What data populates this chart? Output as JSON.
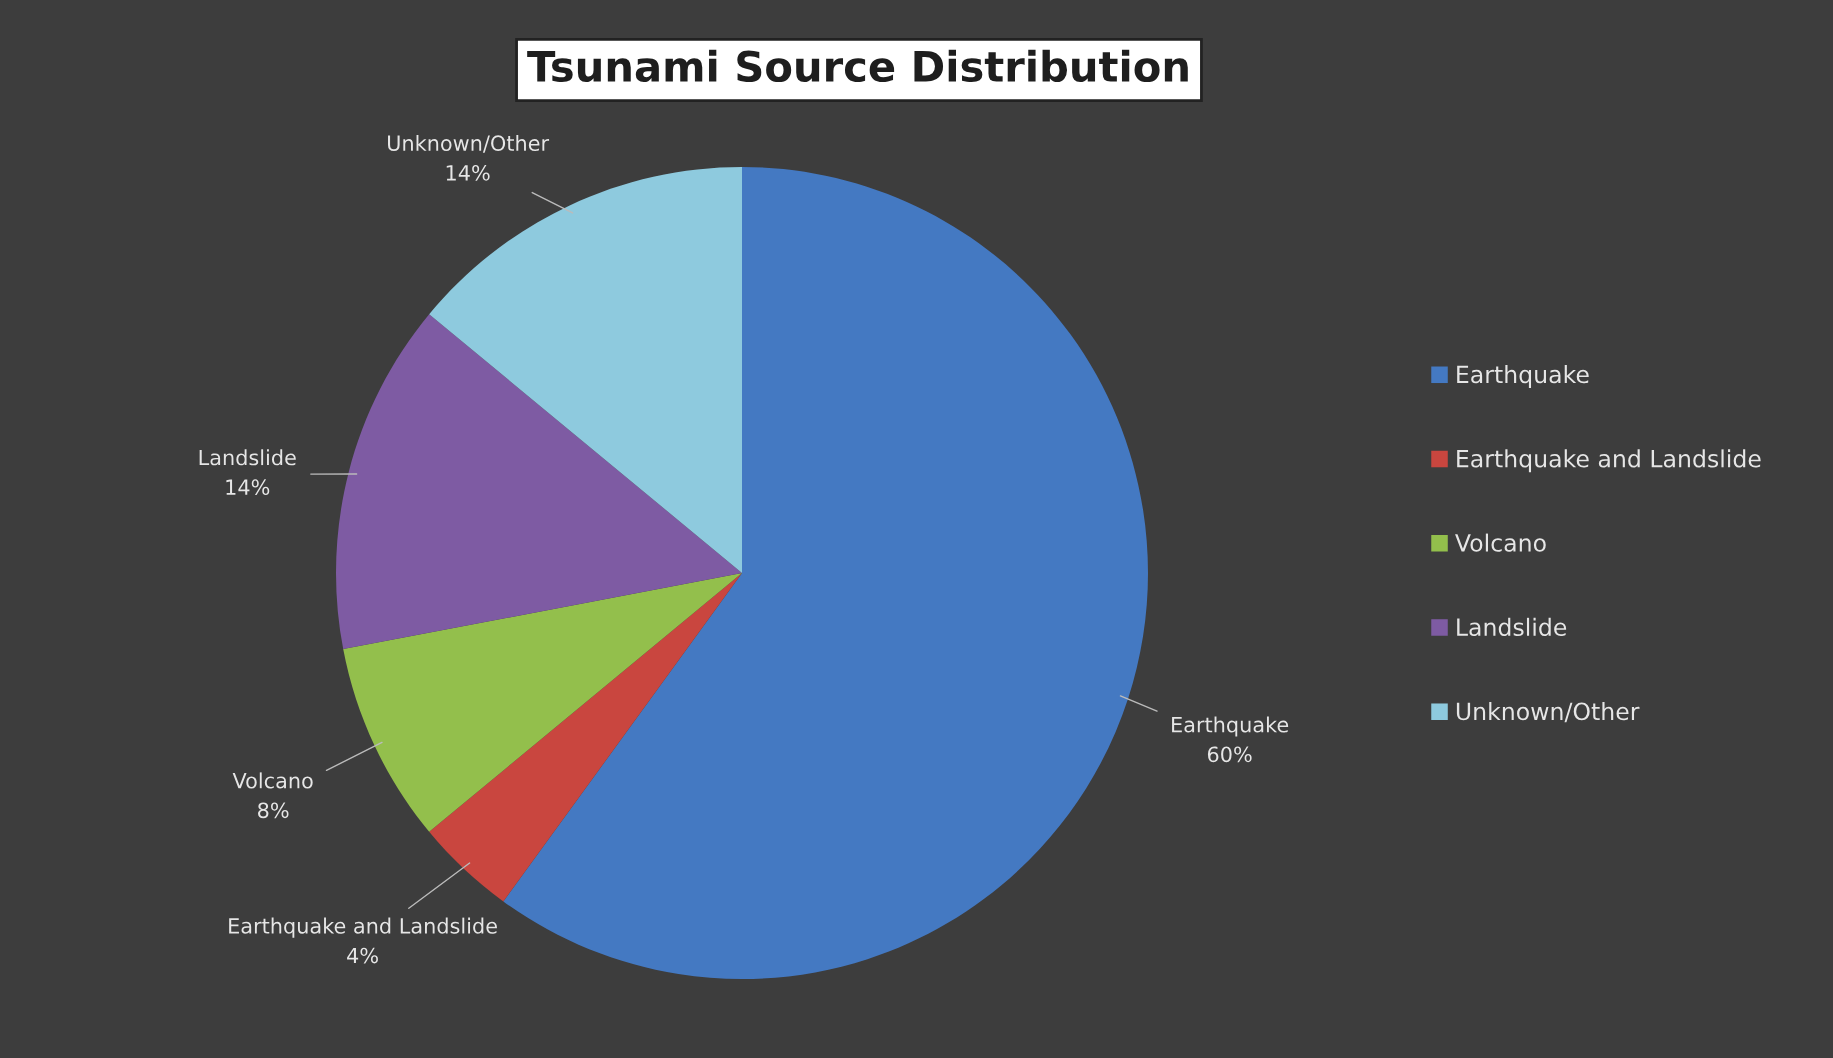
{
  "chart_data": {
    "type": "pie",
    "title": "Tsunami Source Distribution",
    "categories": [
      "Earthquake",
      "Earthquake and Landslide",
      "Volcano",
      "Landslide",
      "Unknown/Other"
    ],
    "values": [
      60,
      4,
      8,
      14,
      14
    ],
    "value_labels": [
      "60%",
      "4%",
      "8%",
      "14%",
      "14%"
    ],
    "colors": [
      "#4479c2",
      "#c9463f",
      "#93bf4c",
      "#7e5ba3",
      "#8ecade"
    ],
    "legend": "right"
  }
}
